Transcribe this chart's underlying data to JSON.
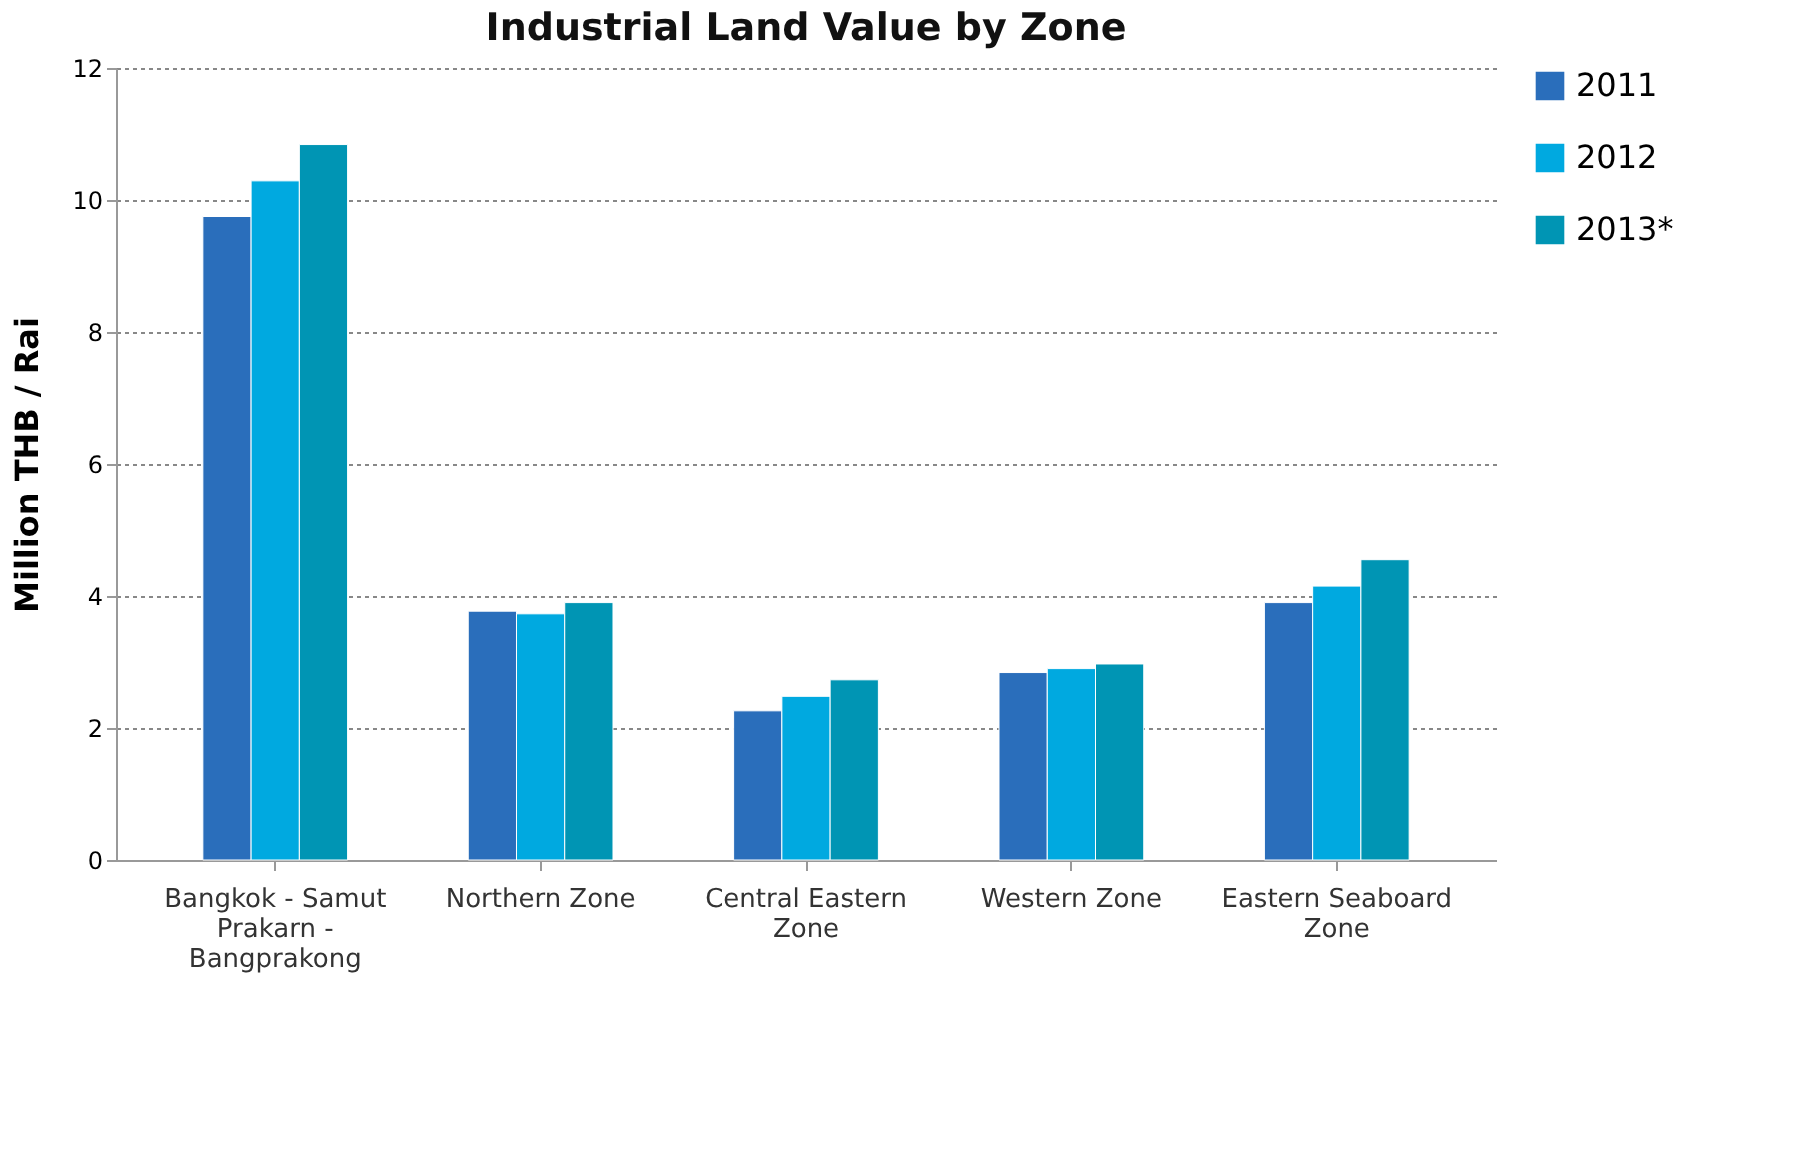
{
  "chart_data": {
    "type": "bar",
    "title": "Industrial Land Value by Zone",
    "ylabel": "Million THB / Rai",
    "categories": [
      "Bangkok - Samut Prakarn - Bangprakong",
      "Northern Zone",
      "Central Eastern Zone",
      "Western Zone",
      "Eastern Seaboard Zone"
    ],
    "series": [
      {
        "name": "2011",
        "color": "#2a6ebb",
        "values": [
          9.75,
          3.77,
          2.26,
          2.84,
          3.9
        ]
      },
      {
        "name": "2012",
        "color": "#00a9e0",
        "values": [
          10.29,
          3.73,
          2.48,
          2.9,
          4.15
        ]
      },
      {
        "name": "2013*",
        "color": "#0095b4",
        "values": [
          10.84,
          3.9,
          2.73,
          2.97,
          4.55
        ]
      }
    ],
    "ylim": [
      0,
      12
    ],
    "yticks": [
      0,
      2,
      4,
      6,
      8,
      10,
      12
    ],
    "grid": "y",
    "legend": "right"
  }
}
